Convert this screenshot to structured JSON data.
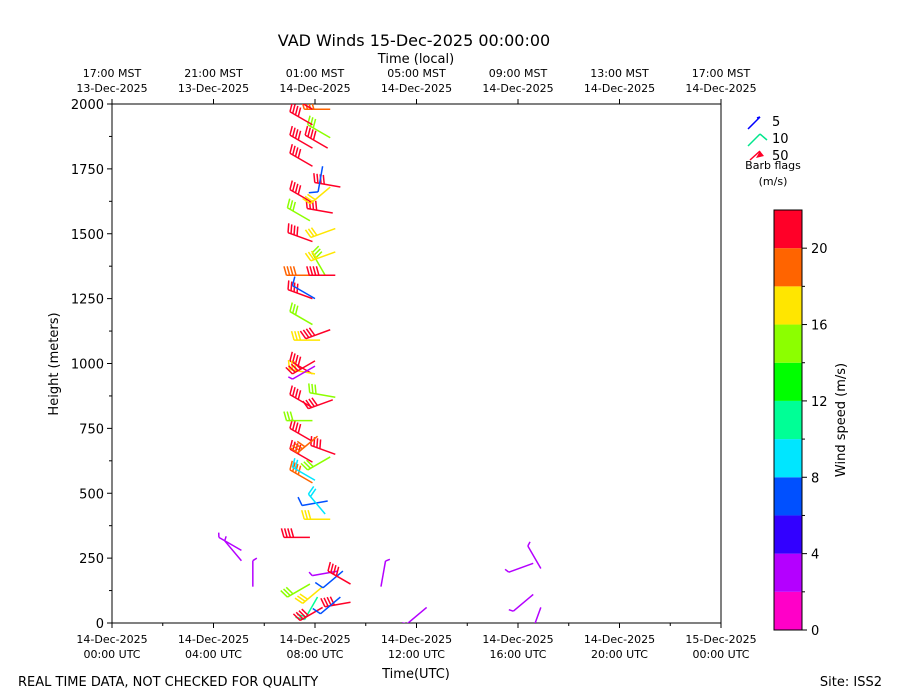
{
  "chart_data": {
    "type": "scatter",
    "title": "VAD Winds 15-Dec-2025 00:00:00",
    "top_axis_label": "Time (local)",
    "xlabel": "Time(UTC)",
    "ylabel": "Height (meters)",
    "ylim": [
      0,
      2000
    ],
    "xlim_hours_from_start": [
      0,
      24
    ],
    "yticks": [
      0,
      250,
      500,
      750,
      1000,
      1250,
      1500,
      1750,
      2000
    ],
    "xticks_utc": [
      {
        "l1": "14-Dec-2025",
        "l2": "00:00 UTC"
      },
      {
        "l1": "14-Dec-2025",
        "l2": "04:00 UTC"
      },
      {
        "l1": "14-Dec-2025",
        "l2": "08:00 UTC"
      },
      {
        "l1": "14-Dec-2025",
        "l2": "12:00 UTC"
      },
      {
        "l1": "14-Dec-2025",
        "l2": "16:00 UTC"
      },
      {
        "l1": "14-Dec-2025",
        "l2": "20:00 UTC"
      },
      {
        "l1": "15-Dec-2025",
        "l2": "00:00 UTC"
      }
    ],
    "xticks_local": [
      {
        "l1": "17:00 MST",
        "l2": "13-Dec-2025"
      },
      {
        "l1": "21:00 MST",
        "l2": "13-Dec-2025"
      },
      {
        "l1": "01:00 MST",
        "l2": "14-Dec-2025"
      },
      {
        "l1": "05:00 MST",
        "l2": "14-Dec-2025"
      },
      {
        "l1": "09:00 MST",
        "l2": "14-Dec-2025"
      },
      {
        "l1": "13:00 MST",
        "l2": "14-Dec-2025"
      },
      {
        "l1": "17:00 MST",
        "l2": "14-Dec-2025"
      }
    ],
    "barb_legend": {
      "entries": [
        "5",
        "10",
        "50"
      ],
      "title_line1": "Barb flags",
      "title_line2": "(m/s)"
    },
    "colorbar": {
      "label": "Wind speed (m/s)",
      "ticks": [
        0,
        4,
        8,
        12,
        16,
        20
      ],
      "range": [
        0,
        22
      ],
      "colors": [
        "#ff00c8",
        "#b400ff",
        "#3200ff",
        "#0050ff",
        "#00e6ff",
        "#00ff96",
        "#00ff00",
        "#8cff00",
        "#ffe600",
        "#ff6400",
        "#ff0028"
      ]
    },
    "barbs": [
      {
        "t": 5.1,
        "h": 280,
        "spd": 2,
        "dir": 300
      },
      {
        "t": 5.1,
        "h": 240,
        "spd": 2,
        "dir": 320
      },
      {
        "t": 5.55,
        "h": 140,
        "spd": 3,
        "dir": 0
      },
      {
        "t": 7.8,
        "h": 330,
        "spd": 21,
        "dir": 270
      },
      {
        "t": 7.8,
        "h": 150,
        "spd": 14,
        "dir": 240
      },
      {
        "t": 8.3,
        "h": 140,
        "spd": 16,
        "dir": 230
      },
      {
        "t": 8.1,
        "h": 100,
        "spd": 10,
        "dir": 210
      },
      {
        "t": 8.3,
        "h": 60,
        "spd": 21,
        "dir": 240
      },
      {
        "t": 8.9,
        "h": 200,
        "spd": 3,
        "dir": 260
      },
      {
        "t": 9.1,
        "h": 200,
        "spd": 6,
        "dir": 230
      },
      {
        "t": 9.4,
        "h": 150,
        "spd": 21,
        "dir": 300
      },
      {
        "t": 9.4,
        "h": 80,
        "spd": 21,
        "dir": 260
      },
      {
        "t": 9.0,
        "h": 100,
        "spd": 6,
        "dir": 230
      },
      {
        "t": 10.6,
        "h": 140,
        "spd": 3,
        "dir": 10
      },
      {
        "t": 12.4,
        "h": 60,
        "spd": 3,
        "dir": 230
      },
      {
        "t": 16.6,
        "h": 230,
        "spd": 3,
        "dir": 250
      },
      {
        "t": 16.9,
        "h": 210,
        "spd": 3,
        "dir": 330
      },
      {
        "t": 16.6,
        "h": 110,
        "spd": 3,
        "dir": 230
      },
      {
        "t": 16.9,
        "h": 60,
        "spd": 3,
        "dir": 200
      },
      {
        "t": 7.9,
        "h": 540,
        "spd": 18,
        "dir": 300
      },
      {
        "t": 8.0,
        "h": 550,
        "spd": 8,
        "dir": 300
      },
      {
        "t": 8.5,
        "h": 470,
        "spd": 6,
        "dir": 260
      },
      {
        "t": 8.6,
        "h": 400,
        "spd": 17,
        "dir": 270
      },
      {
        "t": 8.4,
        "h": 420,
        "spd": 9,
        "dir": 320
      },
      {
        "t": 7.9,
        "h": 620,
        "spd": 21,
        "dir": 300
      },
      {
        "t": 8.8,
        "h": 650,
        "spd": 21,
        "dir": 290
      },
      {
        "t": 8.6,
        "h": 640,
        "spd": 15,
        "dir": 240
      },
      {
        "t": 7.9,
        "h": 700,
        "spd": 21,
        "dir": 300
      },
      {
        "t": 8.1,
        "h": 720,
        "spd": 19,
        "dir": 230
      },
      {
        "t": 7.9,
        "h": 780,
        "spd": 14,
        "dir": 270
      },
      {
        "t": 7.9,
        "h": 830,
        "spd": 21,
        "dir": 300
      },
      {
        "t": 8.7,
        "h": 860,
        "spd": 21,
        "dir": 250
      },
      {
        "t": 8.8,
        "h": 870,
        "spd": 15,
        "dir": 280
      },
      {
        "t": 7.9,
        "h": 960,
        "spd": 21,
        "dir": 300
      },
      {
        "t": 8.0,
        "h": 960,
        "spd": 16,
        "dir": 280
      },
      {
        "t": 8.0,
        "h": 990,
        "spd": 3,
        "dir": 240
      },
      {
        "t": 8.0,
        "h": 1010,
        "spd": 21,
        "dir": 240
      },
      {
        "t": 8.2,
        "h": 1090,
        "spd": 16,
        "dir": 270
      },
      {
        "t": 8.6,
        "h": 1130,
        "spd": 21,
        "dir": 250
      },
      {
        "t": 7.9,
        "h": 1150,
        "spd": 14,
        "dir": 300
      },
      {
        "t": 7.9,
        "h": 1250,
        "spd": 21,
        "dir": 290
      },
      {
        "t": 8.0,
        "h": 1250,
        "spd": 6,
        "dir": 300
      },
      {
        "t": 7.9,
        "h": 1340,
        "spd": 19,
        "dir": 270
      },
      {
        "t": 8.4,
        "h": 1340,
        "spd": 15,
        "dir": 330
      },
      {
        "t": 8.8,
        "h": 1340,
        "spd": 21,
        "dir": 270
      },
      {
        "t": 8.8,
        "h": 1430,
        "spd": 16,
        "dir": 250
      },
      {
        "t": 7.9,
        "h": 1470,
        "spd": 21,
        "dir": 290
      },
      {
        "t": 8.8,
        "h": 1520,
        "spd": 17,
        "dir": 250
      },
      {
        "t": 7.8,
        "h": 1550,
        "spd": 15,
        "dir": 300
      },
      {
        "t": 8.7,
        "h": 1580,
        "spd": 21,
        "dir": 280
      },
      {
        "t": 7.9,
        "h": 1620,
        "spd": 21,
        "dir": 300
      },
      {
        "t": 8.6,
        "h": 1680,
        "spd": 17,
        "dir": 230
      },
      {
        "t": 9.0,
        "h": 1680,
        "spd": 21,
        "dir": 280
      },
      {
        "t": 7.9,
        "h": 1760,
        "spd": 21,
        "dir": 300
      },
      {
        "t": 8.3,
        "h": 1760,
        "spd": 6,
        "dir": 190
      },
      {
        "t": 7.9,
        "h": 1830,
        "spd": 21,
        "dir": 300
      },
      {
        "t": 8.5,
        "h": 1830,
        "spd": 21,
        "dir": 300
      },
      {
        "t": 8.6,
        "h": 1870,
        "spd": 14,
        "dir": 300
      },
      {
        "t": 7.9,
        "h": 1920,
        "spd": 21,
        "dir": 300
      },
      {
        "t": 8.6,
        "h": 1980,
        "spd": 19,
        "dir": 270
      },
      {
        "t": 7.9,
        "h": 1980,
        "spd": 21,
        "dir": 300
      }
    ]
  },
  "footer": {
    "left": "REAL TIME DATA, NOT CHECKED FOR QUALITY",
    "right": "Site: ISS2"
  }
}
